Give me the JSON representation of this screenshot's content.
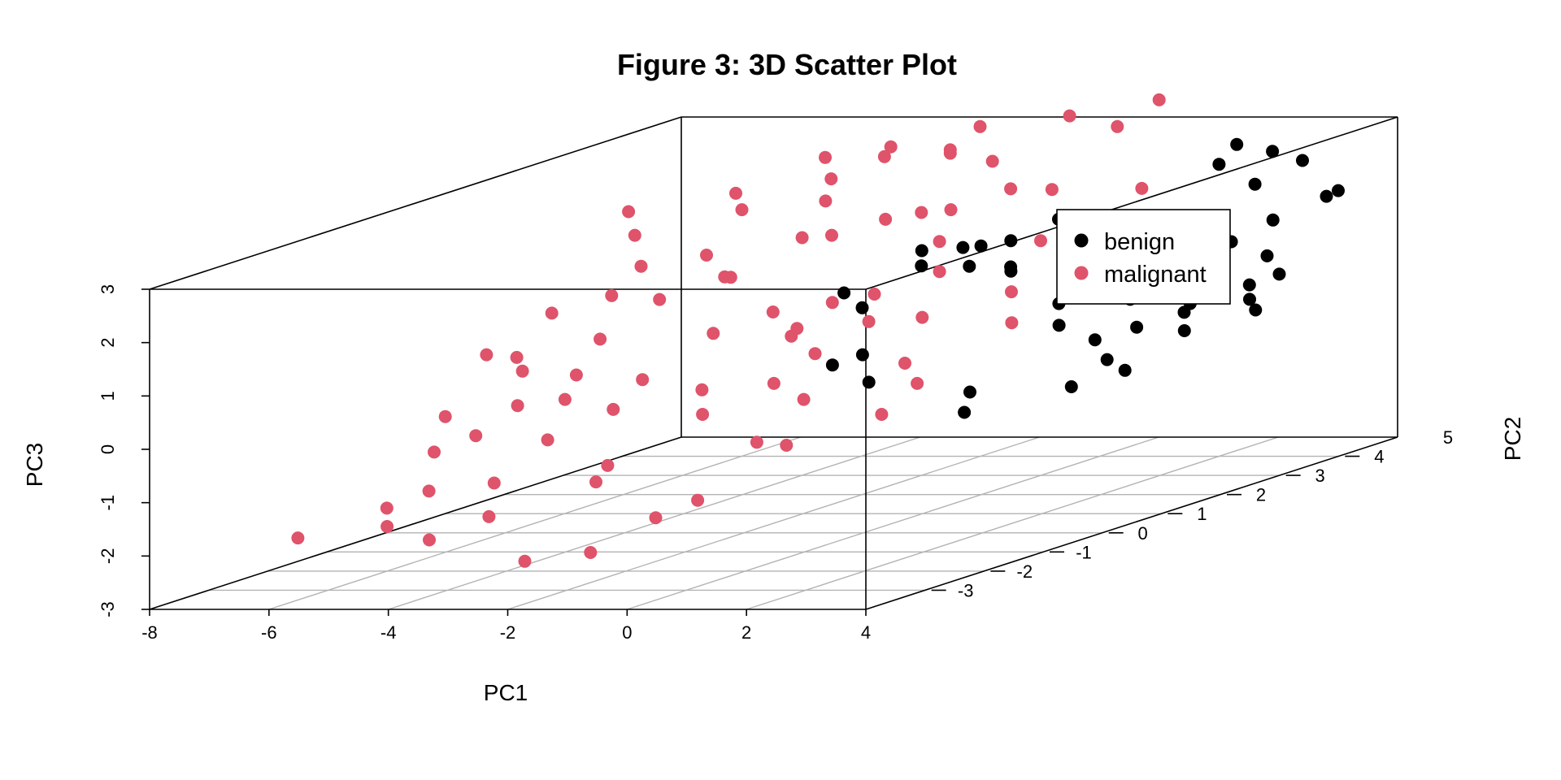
{
  "chart_data": {
    "type": "scatter",
    "subtype": "3d",
    "title": "Figure 3: 3D Scatter Plot",
    "xlabel": "PC1",
    "ylabel": "PC2",
    "zlabel": "PC3",
    "xlim": [
      -8,
      4
    ],
    "ylim": [
      -4,
      5
    ],
    "zlim": [
      -3,
      3
    ],
    "x_ticks": [
      "-8",
      "-6",
      "-4",
      "-2",
      "0",
      "2",
      "4"
    ],
    "y_ticks": [
      "-3",
      "-2",
      "-1",
      "0",
      "1",
      "2",
      "3",
      "4",
      "5"
    ],
    "z_ticks": [
      "-3",
      "-2",
      "-1",
      "0",
      "1",
      "2",
      "3"
    ],
    "grid": true,
    "legend": {
      "position": "top-right",
      "entries": [
        {
          "label": "benign",
          "color": "#000000"
        },
        {
          "label": "malignant",
          "color": "#DF536B"
        }
      ]
    },
    "series": [
      {
        "name": "benign",
        "color": "#000000",
        "points": [
          [
            -1.5,
            3.2,
            1.2
          ],
          [
            -1.0,
            3.0,
            1.3
          ],
          [
            -0.8,
            3.3,
            0.8
          ],
          [
            -0.5,
            3.0,
            1.4
          ],
          [
            -1.8,
            2.8,
            1.0
          ],
          [
            -2.8,
            2.5,
            0.6
          ],
          [
            -2.0,
            2.0,
            0.5
          ],
          [
            -1.2,
            2.2,
            1.5
          ],
          [
            -0.7,
            2.5,
            1.1
          ],
          [
            0.0,
            3.5,
            1.6
          ],
          [
            -0.3,
            2.8,
            0.9
          ],
          [
            0.3,
            3.0,
            1.8
          ],
          [
            -2.3,
            1.8,
            -0.5
          ],
          [
            -1.5,
            1.5,
            -0.2
          ],
          [
            -0.8,
            0.9,
            -0.5
          ],
          [
            0.3,
            1.5,
            -0.9
          ],
          [
            0.7,
            1.0,
            -1.1
          ],
          [
            1.5,
            3.0,
            0.3
          ],
          [
            0.8,
            2.5,
            0.4
          ],
          [
            1.1,
            2.2,
            0.1
          ],
          [
            2.0,
            2.5,
            0.5
          ],
          [
            2.5,
            3.0,
            0.7
          ],
          [
            2.8,
            2.6,
            0.2
          ],
          [
            1.9,
            2.0,
            -0.1
          ],
          [
            2.3,
            1.8,
            -0.4
          ],
          [
            1.6,
            3.5,
            1.0
          ],
          [
            3.1,
            3.8,
            1.5
          ],
          [
            2.6,
            4.0,
            2.1
          ],
          [
            1.8,
            4.2,
            2.4
          ],
          [
            3.5,
            4.5,
            1.8
          ],
          [
            2.0,
            1.5,
            -0.8
          ],
          [
            2.6,
            1.8,
            -0.6
          ],
          [
            3.2,
            2.2,
            0.0
          ],
          [
            3.3,
            3.2,
            0.5
          ],
          [
            3.6,
            3.0,
            0.1
          ],
          [
            1.7,
            2.8,
            0.6
          ],
          [
            2.7,
            3.5,
            1.2
          ],
          [
            3.5,
            3.0,
            0.3
          ],
          [
            3.2,
            3.6,
            0.9
          ],
          [
            2.4,
            2.7,
            0.6
          ],
          [
            1.9,
            4.4,
            2.7
          ],
          [
            2.2,
            3.5,
            1.4
          ],
          [
            3.0,
            2.5,
            0.4
          ],
          [
            3.0,
            4.4,
            2.4
          ],
          [
            3.8,
            3.2,
            0.7
          ],
          [
            3.6,
            4.2,
            1.8
          ],
          [
            2.5,
            2.1,
            0.1
          ],
          [
            1.7,
            2.5,
            0.7
          ],
          [
            2.9,
            3.0,
            0.5
          ],
          [
            2.3,
            4.6,
            2.5
          ]
        ]
      },
      {
        "name": "malignant",
        "color": "#DF536B",
        "points": [
          [
            -7.8,
            1.5,
            -0.2
          ],
          [
            -7.5,
            0.5,
            -1.0
          ],
          [
            -7.2,
            2.0,
            0.4
          ],
          [
            -6.8,
            3.0,
            1.5
          ],
          [
            -6.5,
            -1.5,
            -2.0
          ],
          [
            -7.0,
            -2.5,
            -2.2
          ],
          [
            -6.2,
            2.5,
            1.1
          ],
          [
            -6.0,
            -0.5,
            -1.0
          ],
          [
            -5.8,
            1.0,
            -0.4
          ],
          [
            -5.5,
            3.5,
            1.8
          ],
          [
            -5.3,
            -2.0,
            -1.5
          ],
          [
            -5.0,
            0.0,
            -0.5
          ],
          [
            -4.8,
            2.5,
            0.9
          ],
          [
            -4.5,
            4.0,
            2.2
          ],
          [
            -4.3,
            -1.0,
            -0.9
          ],
          [
            -4.0,
            1.5,
            0.2
          ],
          [
            -3.8,
            -2.5,
            -1.8
          ],
          [
            -3.5,
            3.0,
            1.5
          ],
          [
            -3.2,
            0.5,
            -0.5
          ],
          [
            -3.0,
            4.5,
            2.5
          ],
          [
            -2.8,
            -1.5,
            -1.2
          ],
          [
            -2.5,
            2.0,
            0.6
          ],
          [
            -2.2,
            -0.5,
            -0.6
          ],
          [
            -2.0,
            3.5,
            1.8
          ],
          [
            -1.8,
            1.0,
            0.0
          ],
          [
            -1.5,
            -2.0,
            -2.0
          ],
          [
            -1.2,
            2.5,
            1.0
          ],
          [
            -1.0,
            0.0,
            -0.5
          ],
          [
            -0.8,
            4.0,
            2.0
          ],
          [
            -0.5,
            1.5,
            0.5
          ],
          [
            -0.3,
            -1.0,
            -1.0
          ],
          [
            0.0,
            3.0,
            1.4
          ],
          [
            0.2,
            0.5,
            0.0
          ],
          [
            0.5,
            2.0,
            0.8
          ],
          [
            0.8,
            -0.5,
            -0.6
          ],
          [
            1.0,
            1.5,
            0.4
          ],
          [
            1.2,
            3.5,
            2.2
          ],
          [
            -3.0,
            1.5,
            0.6
          ],
          [
            -2.6,
            3.0,
            1.8
          ],
          [
            -4.4,
            2.2,
            1.0
          ],
          [
            -5.6,
            1.2,
            0.2
          ],
          [
            -1.4,
            1.6,
            0.9
          ],
          [
            -0.7,
            3.2,
            2.3
          ],
          [
            -3.4,
            -0.8,
            -0.4
          ],
          [
            -2.0,
            0.8,
            0.4
          ],
          [
            -4.0,
            3.4,
            2.0
          ],
          [
            -1.8,
            2.8,
            2.0
          ],
          [
            -6.0,
            1.8,
            0.8
          ],
          [
            -0.2,
            4.5,
            3.0
          ],
          [
            0.5,
            4.5,
            3.5
          ],
          [
            -3.5,
            4.0,
            2.8
          ],
          [
            -2.5,
            4.5,
            3.0
          ],
          [
            -1.0,
            4.5,
            3.2
          ],
          [
            -4.6,
            4.0,
            2.6
          ],
          [
            -6.6,
            0.8,
            0.0
          ],
          [
            -5.2,
            -0.6,
            -0.4
          ],
          [
            -3.9,
            0.2,
            -0.2
          ],
          [
            -2.7,
            -1.8,
            -1.4
          ],
          [
            -1.5,
            0.0,
            -0.2
          ],
          [
            -0.6,
            -2.2,
            -1.6
          ],
          [
            -6.4,
            -0.8,
            -1.2
          ],
          [
            -5.0,
            1.6,
            0.8
          ],
          [
            -3.6,
            2.6,
            1.6
          ],
          [
            -2.3,
            1.2,
            0.4
          ],
          [
            -1.1,
            2.4,
            1.6
          ],
          [
            0.9,
            0.0,
            -0.2
          ],
          [
            -0.4,
            -1.4,
            -0.8
          ],
          [
            -4.7,
            -2.6,
            -2.2
          ],
          [
            -3.1,
            -2.6,
            -2.6
          ],
          [
            -1.9,
            -2.7,
            -2.4
          ],
          [
            -5.9,
            3.8,
            2.0
          ],
          [
            -4.2,
            4.6,
            2.4
          ],
          [
            -2.9,
            4.4,
            2.6
          ],
          [
            -1.6,
            3.8,
            2.6
          ],
          [
            -0.9,
            1.0,
            0.6
          ],
          [
            -7.3,
            3.4,
            1.8
          ],
          [
            -6.9,
            1.2,
            -0.4
          ],
          [
            -6.1,
            -1.9,
            -2.2
          ],
          [
            -5.4,
            2.8,
            1.2
          ],
          [
            -4.9,
            -1.3,
            -1.6
          ]
        ]
      }
    ]
  }
}
